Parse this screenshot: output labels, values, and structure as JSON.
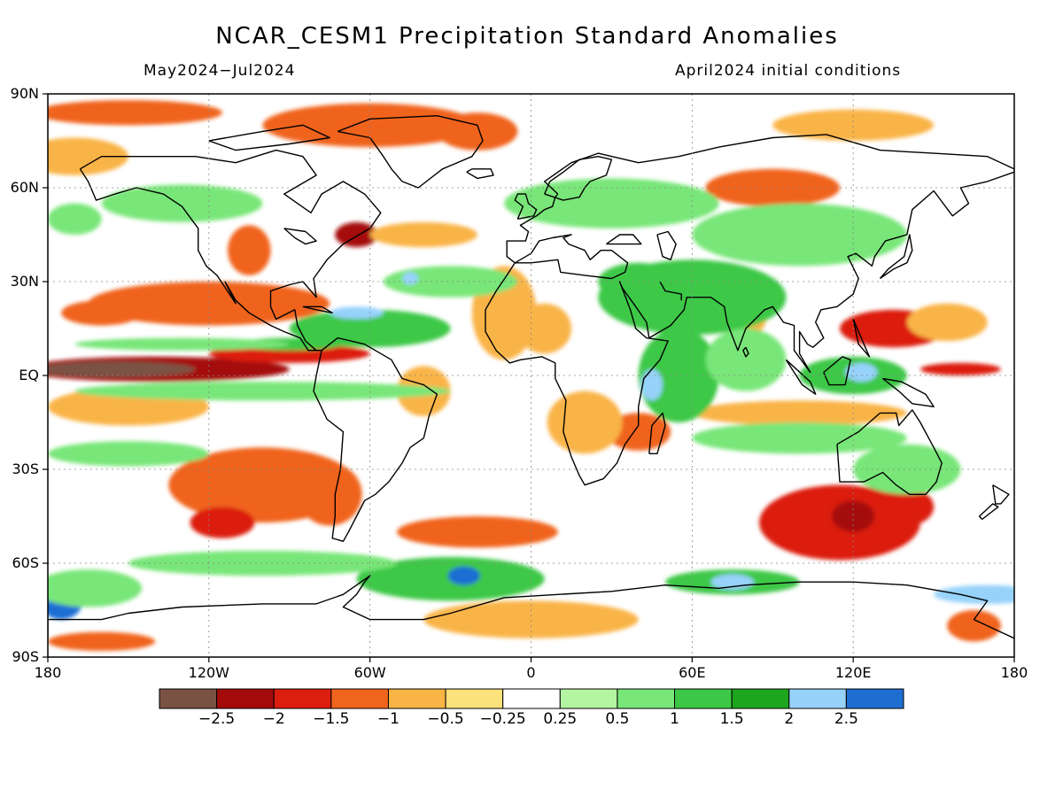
{
  "chart_data": {
    "type": "heatmap",
    "title": "NCAR_CESM1 Precipitation Standard Anomalies",
    "subtitle_left": "May2024−Jul2024",
    "subtitle_right": "April2024 initial conditions",
    "projection": "cylindrical equidistant",
    "xlim": [
      -180,
      180
    ],
    "ylim": [
      -90,
      90
    ],
    "x_ticks": [
      {
        "value": -180,
        "label": "180"
      },
      {
        "value": -120,
        "label": "120W"
      },
      {
        "value": -60,
        "label": "60W"
      },
      {
        "value": 0,
        "label": "0"
      },
      {
        "value": 60,
        "label": "60E"
      },
      {
        "value": 120,
        "label": "120E"
      },
      {
        "value": 180,
        "label": "180"
      }
    ],
    "y_ticks": [
      {
        "value": 90,
        "label": "90N"
      },
      {
        "value": 60,
        "label": "60N"
      },
      {
        "value": 30,
        "label": "30N"
      },
      {
        "value": 0,
        "label": "EQ"
      },
      {
        "value": -30,
        "label": "30S"
      },
      {
        "value": -60,
        "label": "60S"
      },
      {
        "value": -90,
        "label": "90S"
      }
    ],
    "grid": true,
    "colorbar": {
      "bins": [
        {
          "color": "#7a5244"
        },
        {
          "color": "#a50a0a"
        },
        {
          "color": "#dc1e0e"
        },
        {
          "color": "#f0641e"
        },
        {
          "color": "#f9b446"
        },
        {
          "color": "#fbe27a"
        },
        {
          "color": "#ffffff"
        },
        {
          "color": "#b4f5a2"
        },
        {
          "color": "#78e678"
        },
        {
          "color": "#3cc846"
        },
        {
          "color": "#1ea51e"
        },
        {
          "color": "#96d2fa"
        },
        {
          "color": "#1e6ed2"
        }
      ],
      "tick_labels": [
        "−2.5",
        "−2",
        "−1.5",
        "−1",
        "−0.5",
        "−0.25",
        "0.25",
        "0.5",
        "1",
        "1.5",
        "2",
        "2.5"
      ]
    },
    "anomaly_regions": [
      {
        "lon": -140,
        "lat": 2,
        "rx": 50,
        "ry": 4,
        "value": -2.2
      },
      {
        "lon": -155,
        "lat": 2,
        "rx": 30,
        "ry": 2.5,
        "value": -2.5
      },
      {
        "lon": -90,
        "lat": 7,
        "rx": 30,
        "ry": 3,
        "value": -1.6
      },
      {
        "lon": -60,
        "lat": 80,
        "rx": 40,
        "ry": 7,
        "value": -1.3
      },
      {
        "lon": -150,
        "lat": 84,
        "rx": 35,
        "ry": 4,
        "value": -1.0
      },
      {
        "lon": -20,
        "lat": 78,
        "rx": 15,
        "ry": 6,
        "value": -1.4
      },
      {
        "lon": -120,
        "lat": 23,
        "rx": 45,
        "ry": 7,
        "value": -1.3
      },
      {
        "lon": -160,
        "lat": 20,
        "rx": 15,
        "ry": 4,
        "value": -1.0
      },
      {
        "lon": -65,
        "lat": 45,
        "rx": 8,
        "ry": 4,
        "value": -2.0
      },
      {
        "lon": -105,
        "lat": 40,
        "rx": 8,
        "ry": 8,
        "value": -1.2
      },
      {
        "lon": 90,
        "lat": 60,
        "rx": 25,
        "ry": 6,
        "value": -1.3
      },
      {
        "lon": 135,
        "lat": 15,
        "rx": 20,
        "ry": 6,
        "value": -1.5
      },
      {
        "lon": 155,
        "lat": 17,
        "rx": 15,
        "ry": 6,
        "value": -0.9
      },
      {
        "lon": -10,
        "lat": 20,
        "rx": 12,
        "ry": 15,
        "value": -0.8
      },
      {
        "lon": 5,
        "lat": 15,
        "rx": 10,
        "ry": 8,
        "value": -0.7
      },
      {
        "lon": 40,
        "lat": -18,
        "rx": 12,
        "ry": 6,
        "value": -1.2
      },
      {
        "lon": 20,
        "lat": -15,
        "rx": 14,
        "ry": 10,
        "value": -0.8
      },
      {
        "lon": -40,
        "lat": -5,
        "rx": 10,
        "ry": 8,
        "value": -0.7
      },
      {
        "lon": -100,
        "lat": -35,
        "rx": 35,
        "ry": 12,
        "value": -1.4
      },
      {
        "lon": -75,
        "lat": -38,
        "rx": 12,
        "ry": 10,
        "value": -1.2
      },
      {
        "lon": -115,
        "lat": -47,
        "rx": 12,
        "ry": 5,
        "value": -1.6
      },
      {
        "lon": 115,
        "lat": -47,
        "rx": 30,
        "ry": 12,
        "value": -1.6
      },
      {
        "lon": 120,
        "lat": -45,
        "rx": 8,
        "ry": 5,
        "value": -2.2
      },
      {
        "lon": 140,
        "lat": -42,
        "rx": 10,
        "ry": 6,
        "value": -1.5
      },
      {
        "lon": -20,
        "lat": -50,
        "rx": 30,
        "ry": 5,
        "value": -1.2
      },
      {
        "lon": 100,
        "lat": -12,
        "rx": 40,
        "ry": 4,
        "value": -0.9
      },
      {
        "lon": -150,
        "lat": -10,
        "rx": 30,
        "ry": 6,
        "value": -0.8
      },
      {
        "lon": -160,
        "lat": -85,
        "rx": 20,
        "ry": 3,
        "value": -1.0
      },
      {
        "lon": 165,
        "lat": -80,
        "rx": 10,
        "ry": 5,
        "value": -1.3
      },
      {
        "lon": 0,
        "lat": -78,
        "rx": 40,
        "ry": 6,
        "value": -0.6
      },
      {
        "lon": 120,
        "lat": 80,
        "rx": 30,
        "ry": 5,
        "value": -0.6
      },
      {
        "lon": 80,
        "lat": 20,
        "rx": 8,
        "ry": 8,
        "value": -0.7
      },
      {
        "lon": -40,
        "lat": 45,
        "rx": 20,
        "ry": 4,
        "value": -0.6
      },
      {
        "lon": 160,
        "lat": 2,
        "rx": 15,
        "ry": 2,
        "value": -1.7
      },
      {
        "lon": -170,
        "lat": 50,
        "rx": 10,
        "ry": 5,
        "value": 0.8
      },
      {
        "lon": -130,
        "lat": 55,
        "rx": 30,
        "ry": 6,
        "value": 0.7
      },
      {
        "lon": 30,
        "lat": 55,
        "rx": 40,
        "ry": 8,
        "value": 0.8
      },
      {
        "lon": 60,
        "lat": 25,
        "rx": 35,
        "ry": 12,
        "value": 1.2
      },
      {
        "lon": 40,
        "lat": 30,
        "rx": 15,
        "ry": 6,
        "value": 1.4
      },
      {
        "lon": 55,
        "lat": 0,
        "rx": 15,
        "ry": 15,
        "value": 1.3
      },
      {
        "lon": 45,
        "lat": -3,
        "rx": 4,
        "ry": 5,
        "value": 2.5
      },
      {
        "lon": 80,
        "lat": 5,
        "rx": 15,
        "ry": 10,
        "value": 1.0
      },
      {
        "lon": 120,
        "lat": 0,
        "rx": 20,
        "ry": 6,
        "value": 1.5
      },
      {
        "lon": 123,
        "lat": 1,
        "rx": 6,
        "ry": 3,
        "value": 2.4
      },
      {
        "lon": -100,
        "lat": -5,
        "rx": 70,
        "ry": 3,
        "value": 0.9
      },
      {
        "lon": -60,
        "lat": 15,
        "rx": 30,
        "ry": 6,
        "value": 1.3
      },
      {
        "lon": -65,
        "lat": 20,
        "rx": 10,
        "ry": 2,
        "value": 2.1
      },
      {
        "lon": -90,
        "lat": 10,
        "rx": 20,
        "ry": 2,
        "value": 1.2
      },
      {
        "lon": -30,
        "lat": 30,
        "rx": 25,
        "ry": 5,
        "value": 1.0
      },
      {
        "lon": -45,
        "lat": 31,
        "rx": 3,
        "ry": 2,
        "value": 2.2
      },
      {
        "lon": -30,
        "lat": -65,
        "rx": 35,
        "ry": 7,
        "value": 1.4
      },
      {
        "lon": -25,
        "lat": -64,
        "rx": 6,
        "ry": 3,
        "value": 2.6
      },
      {
        "lon": 75,
        "lat": -66,
        "rx": 25,
        "ry": 4,
        "value": 1.3
      },
      {
        "lon": 75,
        "lat": -66,
        "rx": 8,
        "ry": 2.5,
        "value": 2.5
      },
      {
        "lon": -175,
        "lat": -72,
        "rx": 8,
        "ry": 6,
        "value": 2.6
      },
      {
        "lon": 170,
        "lat": -70,
        "rx": 20,
        "ry": 3,
        "value": 2.5
      },
      {
        "lon": -165,
        "lat": -68,
        "rx": 20,
        "ry": 6,
        "value": 1.0
      },
      {
        "lon": 100,
        "lat": -20,
        "rx": 40,
        "ry": 5,
        "value": 0.7
      },
      {
        "lon": -150,
        "lat": -25,
        "rx": 30,
        "ry": 4,
        "value": 0.6
      },
      {
        "lon": -100,
        "lat": -60,
        "rx": 50,
        "ry": 4,
        "value": 0.8
      },
      {
        "lon": 140,
        "lat": -30,
        "rx": 20,
        "ry": 8,
        "value": 0.6
      },
      {
        "lon": 100,
        "lat": 45,
        "rx": 40,
        "ry": 10,
        "value": 0.6
      },
      {
        "lon": -170,
        "lat": 70,
        "rx": 20,
        "ry": 6,
        "value": -0.6
      },
      {
        "lon": -130,
        "lat": 10,
        "rx": 40,
        "ry": 2,
        "value": 0.7
      }
    ]
  }
}
